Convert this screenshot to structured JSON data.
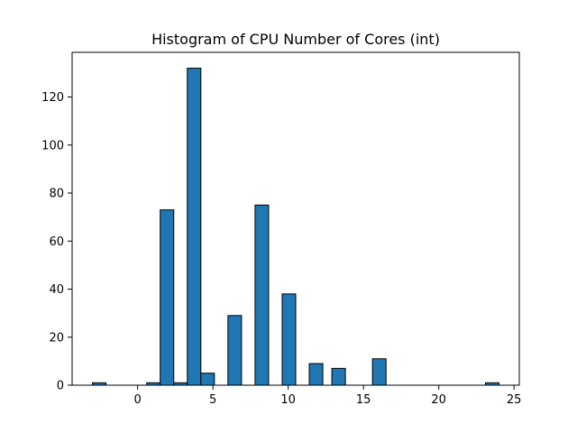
{
  "chart_data": {
    "type": "bar",
    "title": "Histogram of CPU Number of Cores (int)",
    "xlabel": "",
    "ylabel": "",
    "xlim": [
      -4.35,
      25.35
    ],
    "ylim": [
      0,
      138.6
    ],
    "xticks": [
      0,
      5,
      10,
      15,
      20,
      25
    ],
    "yticks": [
      0,
      20,
      40,
      60,
      80,
      100,
      120
    ],
    "bar_color": "#1f77b4",
    "edge_color": "#000000",
    "grid": false,
    "bins": [
      {
        "x0": -3.0,
        "x1": -2.1,
        "count": 1
      },
      {
        "x0": 0.6,
        "x1": 1.5,
        "count": 1
      },
      {
        "x0": 1.5,
        "x1": 2.4,
        "count": 73
      },
      {
        "x0": 2.4,
        "x1": 3.3,
        "count": 1
      },
      {
        "x0": 3.3,
        "x1": 4.2,
        "count": 132
      },
      {
        "x0": 4.2,
        "x1": 5.1,
        "count": 5
      },
      {
        "x0": 6.0,
        "x1": 6.9,
        "count": 29
      },
      {
        "x0": 7.8,
        "x1": 8.7,
        "count": 75
      },
      {
        "x0": 9.6,
        "x1": 10.5,
        "count": 38
      },
      {
        "x0": 11.4,
        "x1": 12.3,
        "count": 9
      },
      {
        "x0": 12.9,
        "x1": 13.8,
        "count": 7
      },
      {
        "x0": 15.6,
        "x1": 16.5,
        "count": 11
      },
      {
        "x0": 23.1,
        "x1": 24.0,
        "count": 1
      }
    ]
  }
}
